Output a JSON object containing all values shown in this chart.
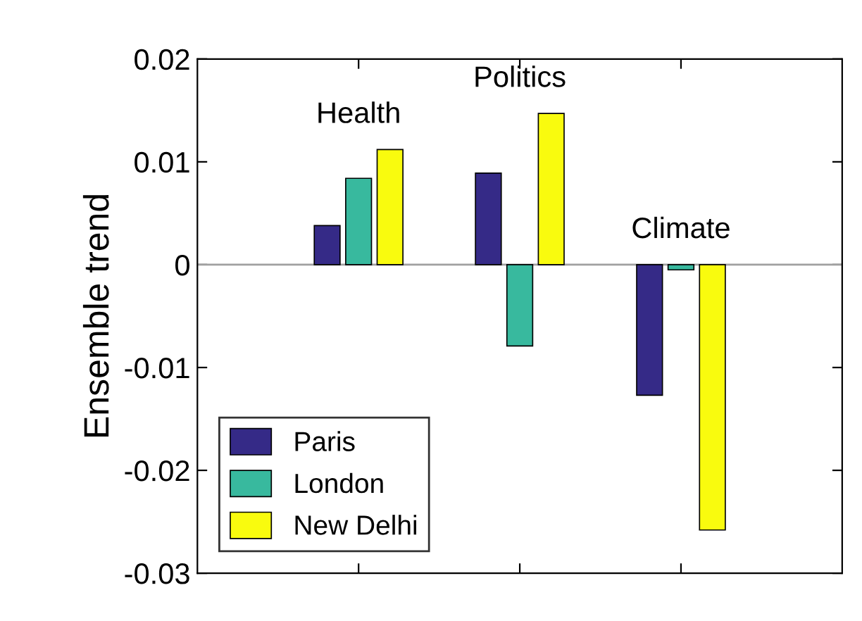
{
  "chart_data": {
    "type": "bar",
    "ylabel": "Ensemble trend",
    "categories": [
      "Health",
      "Politics",
      "Climate"
    ],
    "series": [
      {
        "name": "Paris",
        "color": "#352a87",
        "values": [
          0.0038,
          0.0089,
          -0.0127
        ]
      },
      {
        "name": "London",
        "color": "#38b99e",
        "values": [
          0.0084,
          -0.0079,
          -0.0005
        ]
      },
      {
        "name": "New Delhi",
        "color": "#f9fb0e",
        "values": [
          0.0112,
          0.0147,
          -0.0258
        ]
      }
    ],
    "ylim": [
      -0.03,
      0.02
    ],
    "yticks": [
      -0.03,
      -0.02,
      -0.01,
      0,
      0.01,
      0.02
    ],
    "ref_lines": [
      {
        "axis": "y",
        "value": 0,
        "color": "#a0a0a0"
      }
    ],
    "legend": "bottom left",
    "grid": false
  }
}
